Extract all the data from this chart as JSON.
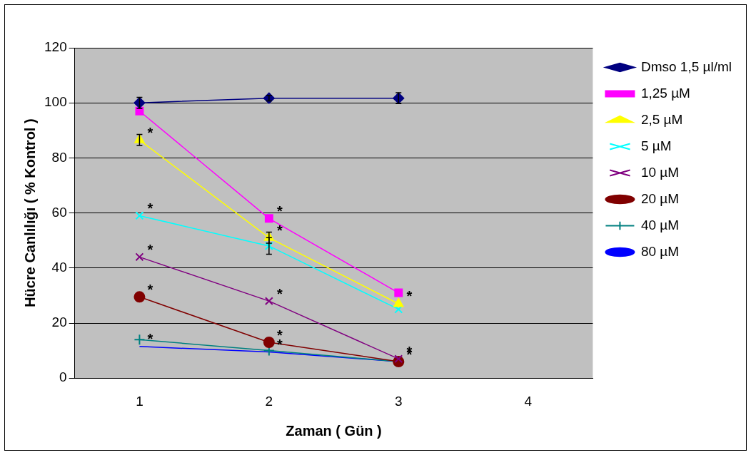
{
  "chart_data": {
    "type": "line",
    "xlabel": "Zaman ( Gün )",
    "ylabel": "Hücre Canlılığı ( % Kontrol )",
    "categories": [
      "1",
      "2",
      "3",
      "4"
    ],
    "series": [
      {
        "name": "Dmso 1,5 µl/ml",
        "color": "#000080",
        "marker": "diamond",
        "values": [
          100,
          101.7,
          101.7,
          null
        ],
        "errors": [
          2,
          1,
          2,
          null
        ]
      },
      {
        "name": "1,25 µM",
        "color": "#ff00ff",
        "marker": "square",
        "values": [
          97,
          58,
          31,
          null
        ]
      },
      {
        "name": "2,5 µM",
        "color": "#ffff00",
        "marker": "triangle",
        "values": [
          86.5,
          51,
          27,
          null
        ],
        "errors": [
          2,
          2,
          null,
          null
        ]
      },
      {
        "name": "5 µM",
        "color": "#00ffff",
        "marker": "cross",
        "values": [
          59,
          48,
          25,
          null
        ],
        "errors": [
          null,
          3,
          null,
          null
        ]
      },
      {
        "name": "10 µM",
        "color": "#800080",
        "marker": "cross",
        "values": [
          44,
          28,
          7,
          null
        ]
      },
      {
        "name": "20 µM",
        "color": "#800000",
        "marker": "circle",
        "values": [
          29.5,
          13,
          6,
          null
        ]
      },
      {
        "name": "40 µM",
        "color": "#008080",
        "marker": "plus",
        "values": [
          14,
          10,
          6,
          null
        ]
      },
      {
        "name": "80 µM",
        "color": "#0000ff",
        "marker": "none",
        "values": [
          11.5,
          9.5,
          6,
          null
        ]
      }
    ],
    "ylim": [
      0,
      120
    ],
    "yticks": [
      0,
      20,
      40,
      60,
      80,
      100,
      120
    ],
    "grid": "y",
    "legend": "right",
    "annotations": [
      {
        "text": "*",
        "x": "1",
        "y": 86.5
      },
      {
        "text": "*",
        "x": "1",
        "y": 59
      },
      {
        "text": "*",
        "x": "1",
        "y": 44
      },
      {
        "text": "*",
        "x": "1",
        "y": 29.5
      },
      {
        "text": "*",
        "x": "1",
        "y": 11.5
      },
      {
        "text": "*",
        "x": "2",
        "y": 58
      },
      {
        "text": "*",
        "x": "2",
        "y": 51
      },
      {
        "text": "*",
        "x": "2",
        "y": 28
      },
      {
        "text": "*",
        "x": "2",
        "y": 13
      },
      {
        "text": "*",
        "x": "2",
        "y": 9.5
      },
      {
        "text": "*",
        "x": "3",
        "y": 27
      },
      {
        "text": "*",
        "x": "3",
        "y": 7
      },
      {
        "text": "*",
        "x": "3",
        "y": 6
      }
    ]
  }
}
